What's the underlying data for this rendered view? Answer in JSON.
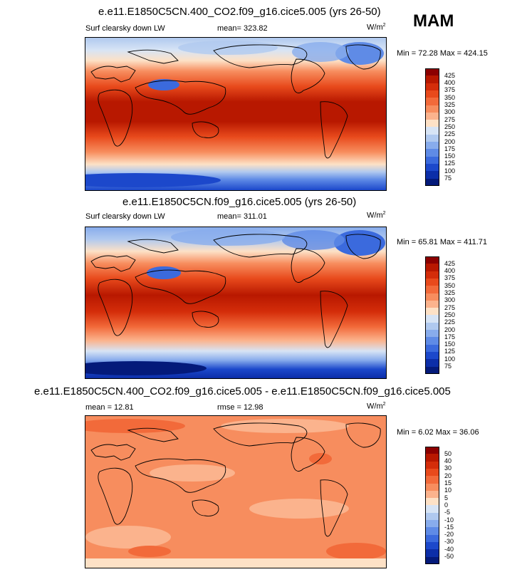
{
  "season": "MAM",
  "panels": [
    {
      "title": "e.e11.E1850C5CN.400_CO2.f09_g16.cice5.005 (yrs 26-50)",
      "left_label": "Surf clearsky down LW",
      "center_label": "mean= 323.82",
      "units_base": "W/m",
      "units_sup": "2",
      "minmax": "Min =  72.28 Max = 424.15",
      "legend": {
        "labels": [
          "425",
          "400",
          "375",
          "350",
          "325",
          "300",
          "275",
          "250",
          "225",
          "200",
          "175",
          "150",
          "125",
          "100",
          "75"
        ],
        "colors": [
          "#8c0000",
          "#b81800",
          "#d42d0a",
          "#e84a1c",
          "#f26a3a",
          "#f78d5e",
          "#fbb38d",
          "#fde1c6",
          "#d7e4f5",
          "#b0c9ef",
          "#88acec",
          "#5f8be6",
          "#3b6add",
          "#1c48cb",
          "#0c2ea8",
          "#041a7a"
        ]
      }
    },
    {
      "title": "e.e11.E1850C5CN.f09_g16.cice5.005 (yrs 26-50)",
      "left_label": "Surf clearsky down LW",
      "center_label": "mean= 311.01",
      "units_base": "W/m",
      "units_sup": "2",
      "minmax": "Min =  65.81 Max = 411.71",
      "legend": {
        "labels": [
          "425",
          "400",
          "375",
          "350",
          "325",
          "300",
          "275",
          "250",
          "225",
          "200",
          "175",
          "150",
          "125",
          "100",
          "75"
        ],
        "colors": [
          "#8c0000",
          "#b81800",
          "#d42d0a",
          "#e84a1c",
          "#f26a3a",
          "#f78d5e",
          "#fbb38d",
          "#fde1c6",
          "#d7e4f5",
          "#b0c9ef",
          "#88acec",
          "#5f8be6",
          "#3b6add",
          "#1c48cb",
          "#0c2ea8",
          "#041a7a"
        ]
      }
    },
    {
      "title": "e.e11.E1850C5CN.400_CO2.f09_g16.cice5.005 - e.e11.E1850C5CN.f09_g16.cice5.005",
      "left_label": "mean =  12.81",
      "center_label": "rmse =  12.98",
      "units_base": "W/m",
      "units_sup": "2",
      "minmax": "Min =   6.02 Max =  36.06",
      "legend": {
        "labels": [
          "50",
          "40",
          "30",
          "20",
          "15",
          "10",
          "5",
          "0",
          "-5",
          "-10",
          "-15",
          "-20",
          "-30",
          "-40",
          "-50"
        ],
        "colors": [
          "#8c0000",
          "#b81800",
          "#d42d0a",
          "#e84a1c",
          "#f26a3a",
          "#f78d5e",
          "#fbb38d",
          "#fde1c6",
          "#d7e4f5",
          "#b0c9ef",
          "#88acec",
          "#5f8be6",
          "#3b6add",
          "#1c48cb",
          "#0c2ea8",
          "#041a7a"
        ]
      }
    }
  ]
}
